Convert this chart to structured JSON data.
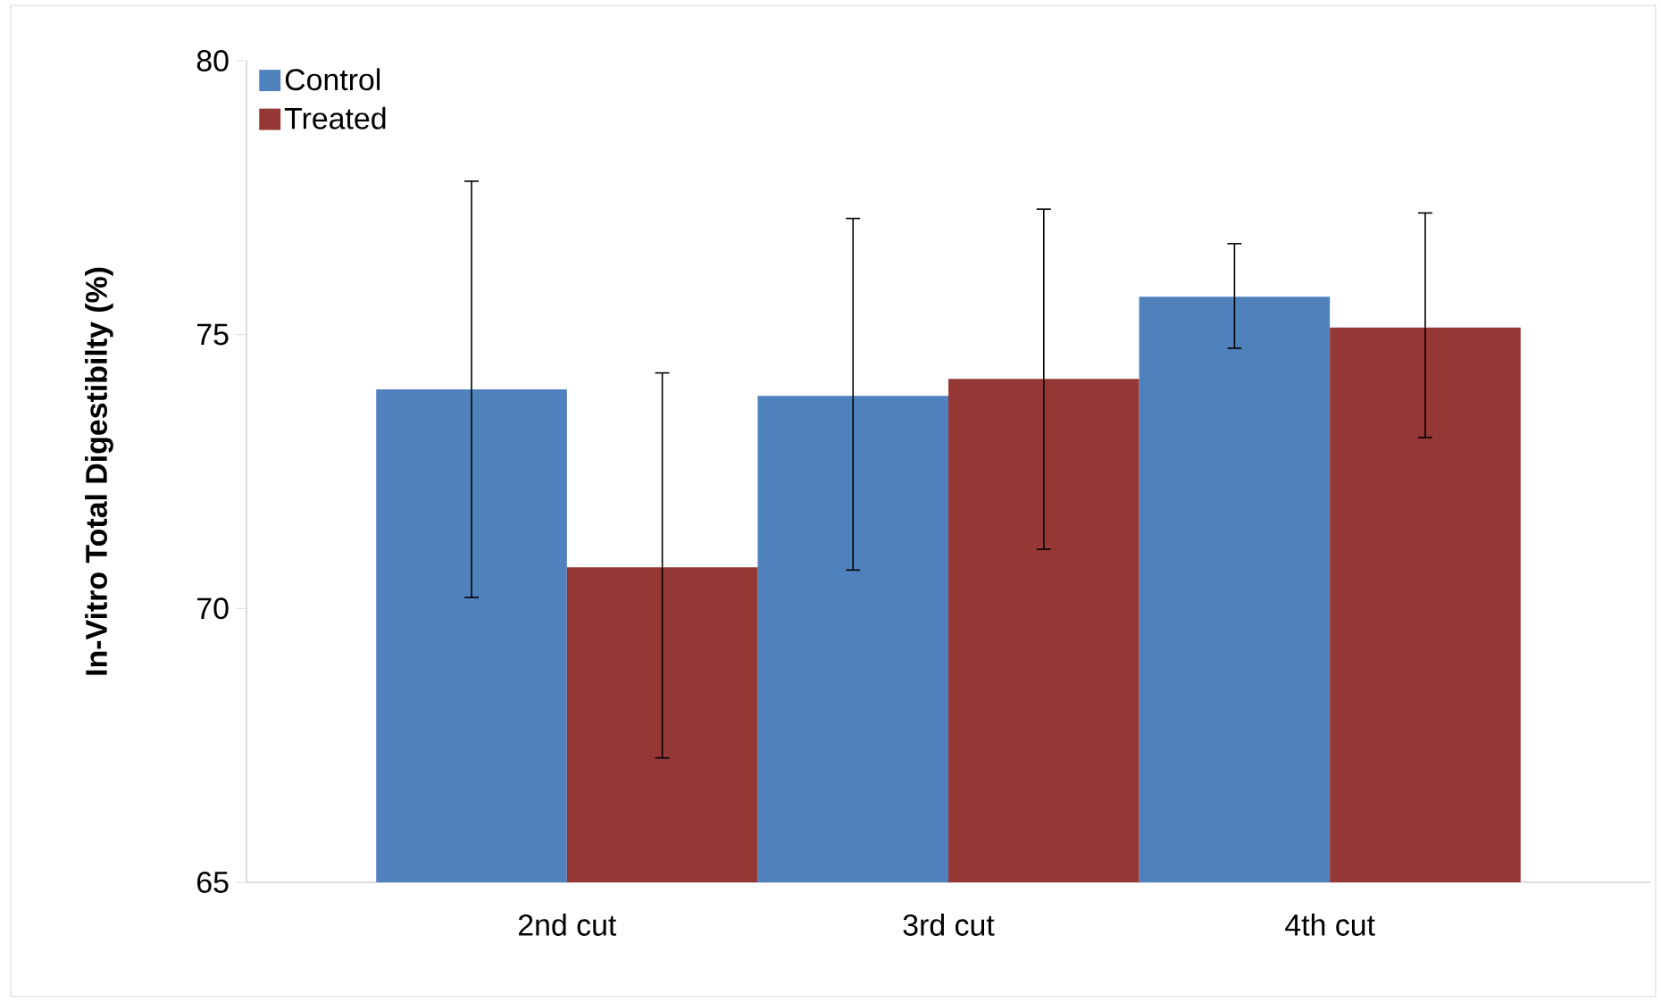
{
  "chart_data": {
    "type": "bar",
    "ylabel": "In-Vitro Total Digestibilty (%)",
    "categories": [
      "2nd cut",
      "3rd cut",
      "4th cut"
    ],
    "series": [
      {
        "name": "Control",
        "color": "#4f81bd",
        "values": [
          74.0,
          73.88,
          75.69
        ],
        "errors": [
          [
            70.2,
            77.8
          ],
          [
            70.7,
            77.12
          ],
          [
            74.75,
            76.66
          ]
        ]
      },
      {
        "name": "Treated",
        "color": "#953735",
        "values": [
          70.75,
          74.19,
          75.13
        ],
        "errors": [
          [
            67.27,
            74.3
          ],
          [
            71.08,
            77.29
          ],
          [
            73.12,
            77.22
          ]
        ]
      }
    ],
    "ylim": [
      65,
      80
    ],
    "yticks": [
      65,
      70,
      75,
      80
    ],
    "legend": "top left",
    "grid": false
  }
}
